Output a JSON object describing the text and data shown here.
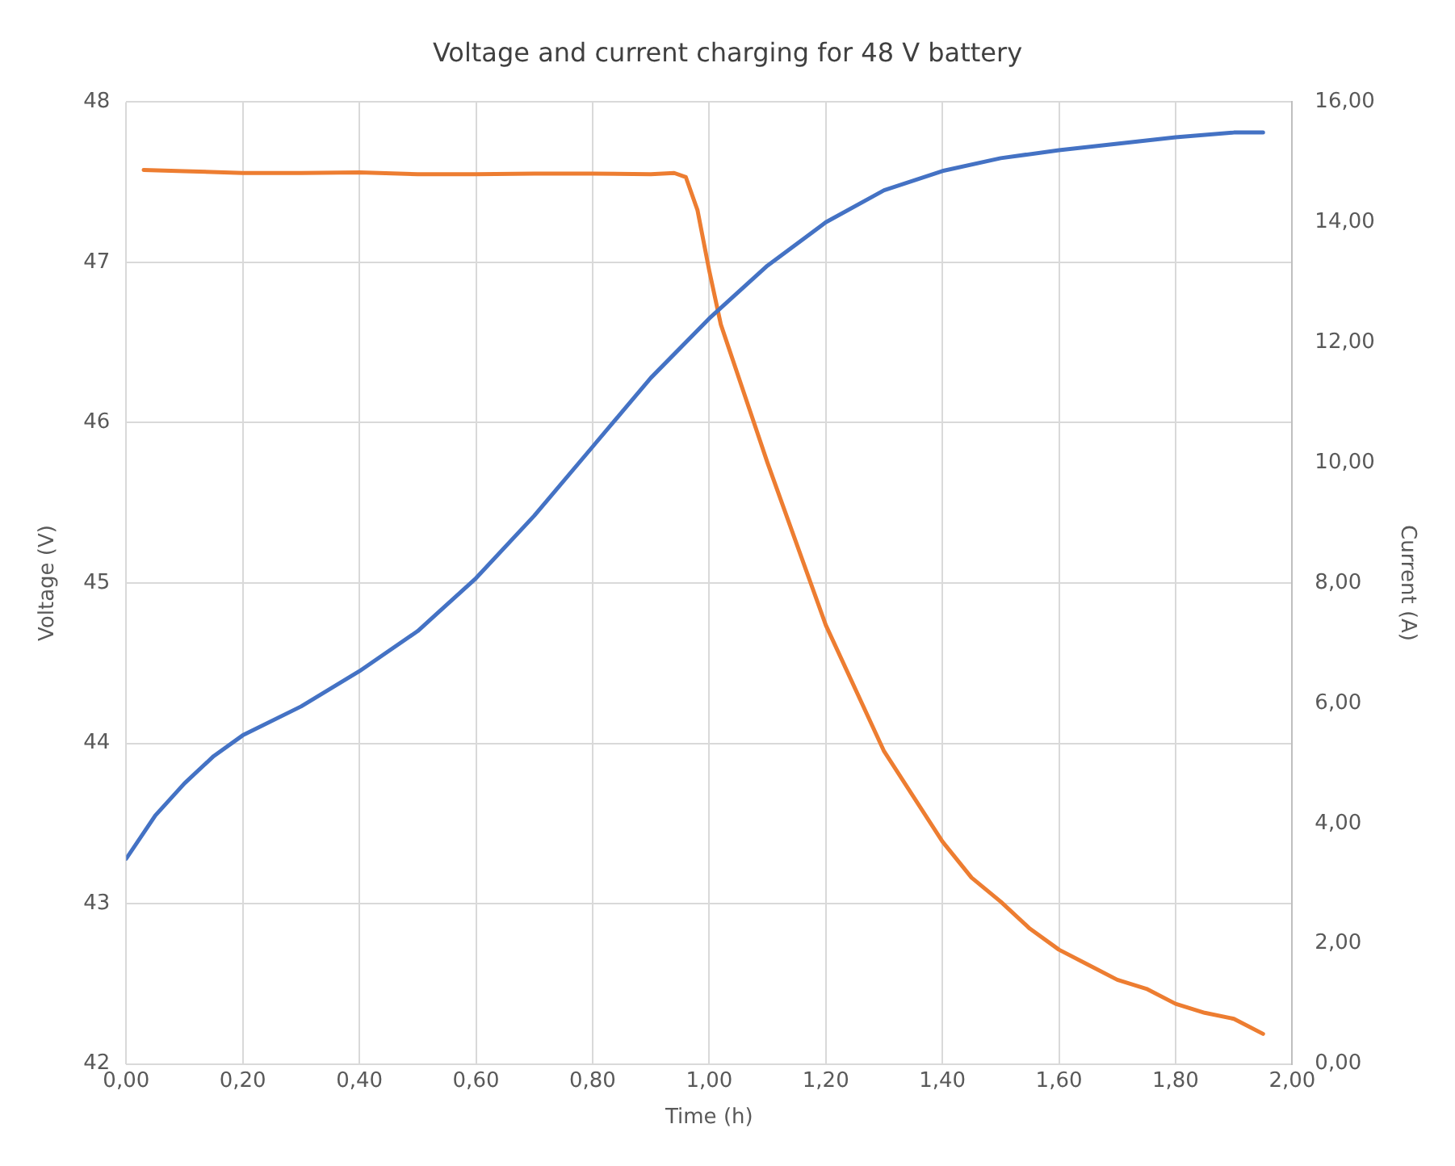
{
  "chart_data": {
    "type": "line",
    "title": "Voltage and current charging for 48 V battery",
    "xlabel": "Time (h)",
    "ylabel": "Voltage (V)",
    "y2label": "Current (A)",
    "xlim": [
      0,
      2
    ],
    "xticks": [
      {
        "value": 0,
        "label": "0,00"
      },
      {
        "value": 0.2,
        "label": "0,20"
      },
      {
        "value": 0.4,
        "label": "0,40"
      },
      {
        "value": 0.6,
        "label": "0,60"
      },
      {
        "value": 0.8,
        "label": "0,80"
      },
      {
        "value": 1,
        "label": "1,00"
      },
      {
        "value": 1.2,
        "label": "1,20"
      },
      {
        "value": 1.4,
        "label": "1,40"
      },
      {
        "value": 1.6,
        "label": "1,60"
      },
      {
        "value": 1.8,
        "label": "1,80"
      },
      {
        "value": 2,
        "label": "2,00"
      }
    ],
    "ylim": [
      42,
      48
    ],
    "yticks": [
      42,
      43,
      44,
      45,
      46,
      47,
      48
    ],
    "y2lim": [
      0,
      16
    ],
    "y2ticks": [
      {
        "value": 0,
        "label": "0,00"
      },
      {
        "value": 2,
        "label": "2,00"
      },
      {
        "value": 4,
        "label": "4,00"
      },
      {
        "value": 6,
        "label": "6,00"
      },
      {
        "value": 8,
        "label": "8,00"
      },
      {
        "value": 10,
        "label": "10,00"
      },
      {
        "value": 12,
        "label": "12,00"
      },
      {
        "value": 14,
        "label": "14,00"
      },
      {
        "value": 16,
        "label": "16,00"
      }
    ],
    "grid": true,
    "legend": false,
    "marker": "none",
    "line_style": "solid",
    "series": [
      {
        "color": "#4472c4",
        "x": [
          0,
          0.05,
          0.1,
          0.15,
          0.2,
          0.3,
          0.4,
          0.5,
          0.6,
          0.7,
          0.8,
          0.9,
          1.0,
          1.1,
          1.2,
          1.3,
          1.4,
          1.5,
          1.6,
          1.7,
          1.8,
          1.9,
          1.95
        ],
        "values": [
          43.28,
          43.55,
          43.75,
          43.92,
          44.05,
          44.23,
          44.45,
          44.7,
          45.03,
          45.42,
          45.85,
          46.28,
          46.65,
          46.98,
          47.25,
          47.45,
          47.57,
          47.65,
          47.7,
          47.74,
          47.78,
          47.81,
          47.81
        ]
      },
      {
        "color": "#ed7d31",
        "axis": "y2",
        "x": [
          0.03,
          0.1,
          0.2,
          0.3,
          0.4,
          0.5,
          0.6,
          0.7,
          0.8,
          0.9,
          0.94,
          0.96,
          0.98,
          1.0,
          1.02,
          1.1,
          1.2,
          1.3,
          1.4,
          1.45,
          1.5,
          1.55,
          1.6,
          1.65,
          1.7,
          1.75,
          1.8,
          1.85,
          1.9,
          1.95
        ],
        "values": [
          14.87,
          14.85,
          14.82,
          14.82,
          14.83,
          14.8,
          14.8,
          14.81,
          14.81,
          14.8,
          14.82,
          14.75,
          14.2,
          13.2,
          12.3,
          10.0,
          7.3,
          5.2,
          3.7,
          3.1,
          2.7,
          2.25,
          1.9,
          1.65,
          1.4,
          1.25,
          1.0,
          0.85,
          0.75,
          0.5
        ]
      }
    ]
  }
}
